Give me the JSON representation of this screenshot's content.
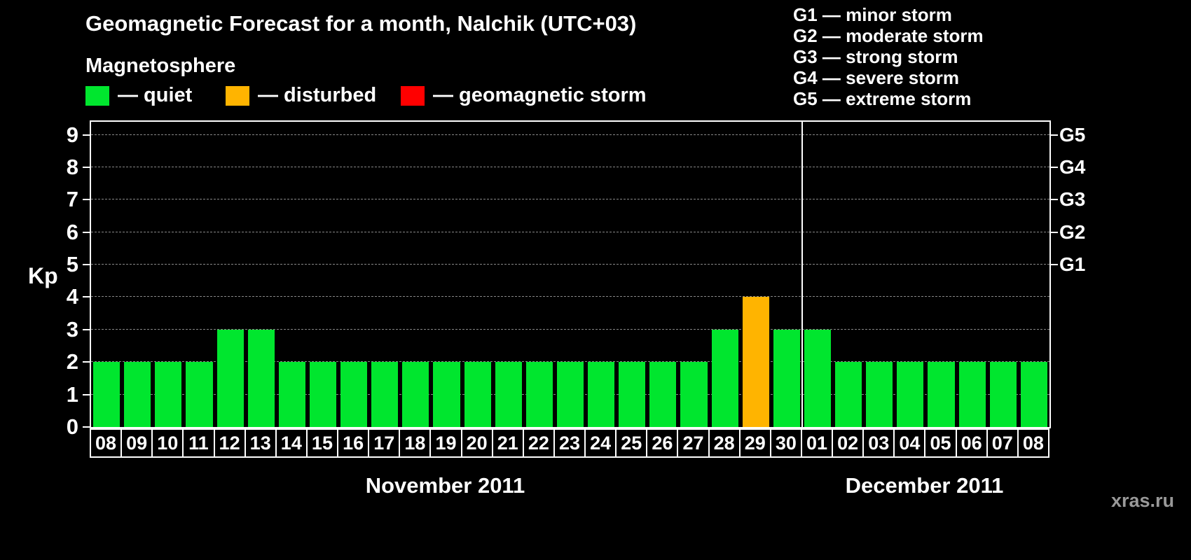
{
  "title": "Geomagnetic Forecast for a month, Nalchik (UTC+03)",
  "subtitle": "Magnetosphere",
  "legend": {
    "items": [
      {
        "name": "quiet",
        "label": "— quiet",
        "color": "#00e62e"
      },
      {
        "name": "disturbed",
        "label": "— disturbed",
        "color": "#ffb400"
      },
      {
        "name": "geomagnetic-storm",
        "label": "— geomagnetic storm",
        "color": "#ff0000"
      }
    ]
  },
  "g_legend": [
    "G1 — minor storm",
    "G2 — moderate storm",
    "G3 — strong storm",
    "G4 — severe storm",
    "G5 — extreme storm"
  ],
  "watermark": "xras.ru",
  "chart_data": {
    "type": "bar",
    "title": "Geomagnetic Forecast for a month, Nalchik (UTC+03)",
    "ylabel": "Kp",
    "ylim": [
      0,
      9.4
    ],
    "yticks": [
      0,
      1,
      2,
      3,
      4,
      5,
      6,
      7,
      8,
      9
    ],
    "grid": "dashed horizontal",
    "right_ticks": [
      {
        "value": 5,
        "label": "G1"
      },
      {
        "value": 6,
        "label": "G2"
      },
      {
        "value": 7,
        "label": "G3"
      },
      {
        "value": 8,
        "label": "G4"
      },
      {
        "value": 9,
        "label": "G5"
      }
    ],
    "categories": [
      "08",
      "09",
      "10",
      "11",
      "12",
      "13",
      "14",
      "15",
      "16",
      "17",
      "18",
      "19",
      "20",
      "21",
      "22",
      "23",
      "24",
      "25",
      "26",
      "27",
      "28",
      "29",
      "30",
      "01",
      "02",
      "03",
      "04",
      "05",
      "06",
      "07",
      "08"
    ],
    "values": [
      2,
      2,
      2,
      2,
      3,
      3,
      2,
      2,
      2,
      2,
      2,
      2,
      2,
      2,
      2,
      2,
      2,
      2,
      2,
      2,
      3,
      4,
      3,
      3,
      2,
      2,
      2,
      2,
      2,
      2,
      2
    ],
    "statuses": [
      "quiet",
      "quiet",
      "quiet",
      "quiet",
      "quiet",
      "quiet",
      "quiet",
      "quiet",
      "quiet",
      "quiet",
      "quiet",
      "quiet",
      "quiet",
      "quiet",
      "quiet",
      "quiet",
      "quiet",
      "quiet",
      "quiet",
      "quiet",
      "quiet",
      "disturbed",
      "quiet",
      "quiet",
      "quiet",
      "quiet",
      "quiet",
      "quiet",
      "quiet",
      "quiet",
      "quiet"
    ],
    "status_colors": {
      "quiet": "#00e62e",
      "disturbed": "#ffb400",
      "storm": "#ff0000"
    },
    "months": [
      {
        "label": "November 2011",
        "days": 23
      },
      {
        "label": "December 2011",
        "days": 8
      }
    ]
  }
}
